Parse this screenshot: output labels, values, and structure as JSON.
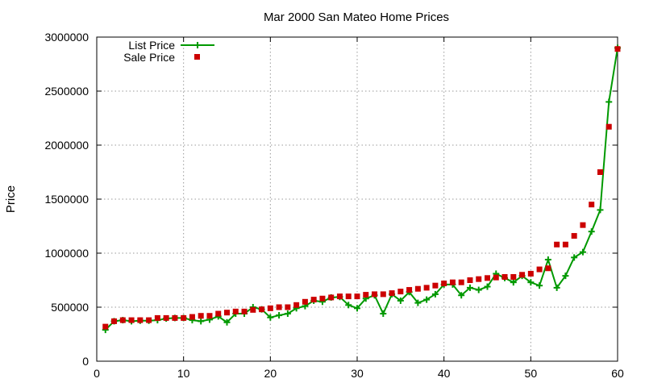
{
  "chart_data": {
    "type": "line",
    "title": "Mar 2000 San Mateo Home Prices",
    "xlabel": "",
    "ylabel": "Price",
    "xlim": [
      0,
      60
    ],
    "ylim": [
      0,
      3000000
    ],
    "xticks": [
      0,
      10,
      20,
      30,
      40,
      50,
      60
    ],
    "yticks": [
      0,
      500000,
      1000000,
      1500000,
      2000000,
      2500000,
      3000000
    ],
    "grid": true,
    "legend_position": "top-left",
    "x": [
      1,
      2,
      3,
      4,
      5,
      6,
      7,
      8,
      9,
      10,
      11,
      12,
      13,
      14,
      15,
      16,
      17,
      18,
      19,
      20,
      21,
      22,
      23,
      24,
      25,
      26,
      27,
      28,
      29,
      30,
      31,
      32,
      33,
      34,
      35,
      36,
      37,
      38,
      39,
      40,
      41,
      42,
      43,
      44,
      45,
      46,
      47,
      48,
      49,
      50,
      51,
      52,
      53,
      54,
      55,
      56,
      57,
      58,
      59,
      60
    ],
    "series": [
      {
        "name": "List Price",
        "style": "linespoints",
        "color": "#009900",
        "marker": "plus",
        "values": [
          290000,
          370000,
          380000,
          370000,
          375000,
          375000,
          380000,
          395000,
          400000,
          400000,
          380000,
          370000,
          385000,
          415000,
          360000,
          440000,
          440000,
          500000,
          480000,
          405000,
          425000,
          440000,
          490000,
          510000,
          560000,
          550000,
          590000,
          595000,
          520000,
          490000,
          580000,
          610000,
          440000,
          620000,
          560000,
          640000,
          540000,
          570000,
          620000,
          710000,
          710000,
          610000,
          680000,
          660000,
          690000,
          810000,
          770000,
          730000,
          790000,
          730000,
          700000,
          940000,
          680000,
          790000,
          960000,
          1010000,
          1200000,
          1400000,
          2400000,
          2900000
        ]
      },
      {
        "name": "Sale Price",
        "style": "points",
        "color": "#cc0000",
        "marker": "square",
        "values": [
          320000,
          370000,
          380000,
          380000,
          380000,
          380000,
          400000,
          400000,
          400000,
          400000,
          410000,
          420000,
          420000,
          440000,
          450000,
          460000,
          460000,
          475000,
          480000,
          490000,
          500000,
          500000,
          520000,
          550000,
          570000,
          580000,
          590000,
          600000,
          600000,
          600000,
          615000,
          620000,
          620000,
          630000,
          645000,
          660000,
          670000,
          680000,
          700000,
          720000,
          730000,
          730000,
          750000,
          760000,
          770000,
          775000,
          780000,
          780000,
          800000,
          810000,
          850000,
          860000,
          1080000,
          1080000,
          1160000,
          1260000,
          1450000,
          1750000,
          2170000,
          2890000
        ]
      }
    ]
  }
}
